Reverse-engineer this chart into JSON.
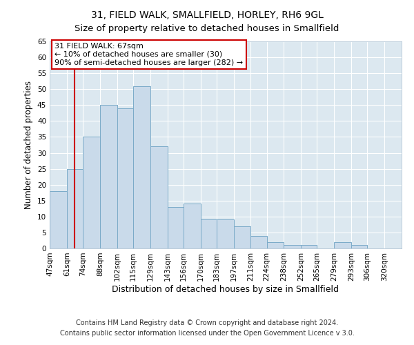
{
  "title": "31, FIELD WALK, SMALLFIELD, HORLEY, RH6 9GL",
  "subtitle": "Size of property relative to detached houses in Smallfield",
  "xlabel": "Distribution of detached houses by size in Smallfield",
  "ylabel": "Number of detached properties",
  "bin_labels": [
    "47sqm",
    "61sqm",
    "74sqm",
    "88sqm",
    "102sqm",
    "115sqm",
    "129sqm",
    "143sqm",
    "156sqm",
    "170sqm",
    "183sqm",
    "197sqm",
    "211sqm",
    "224sqm",
    "238sqm",
    "252sqm",
    "265sqm",
    "279sqm",
    "293sqm",
    "306sqm",
    "320sqm"
  ],
  "bin_edges": [
    47,
    61,
    74,
    88,
    102,
    115,
    129,
    143,
    156,
    170,
    183,
    197,
    211,
    224,
    238,
    252,
    265,
    279,
    293,
    306,
    320
  ],
  "bar_heights": [
    18,
    25,
    35,
    45,
    44,
    51,
    32,
    13,
    14,
    9,
    9,
    7,
    4,
    2,
    1,
    1,
    0,
    2,
    1,
    0
  ],
  "bar_color": "#c9daea",
  "bar_edgecolor": "#7aaac8",
  "vline_x": 67,
  "vline_color": "#cc0000",
  "annotation_title": "31 FIELD WALK: 67sqm",
  "annotation_line1": "← 10% of detached houses are smaller (30)",
  "annotation_line2": "90% of semi-detached houses are larger (282) →",
  "annotation_box_edgecolor": "#cc0000",
  "ylim": [
    0,
    65
  ],
  "yticks": [
    0,
    5,
    10,
    15,
    20,
    25,
    30,
    35,
    40,
    45,
    50,
    55,
    60,
    65
  ],
  "footer1": "Contains HM Land Registry data © Crown copyright and database right 2024.",
  "footer2": "Contains public sector information licensed under the Open Government Licence v 3.0.",
  "bg_color": "#ffffff",
  "plot_bg_color": "#dce8f0",
  "title_fontsize": 10,
  "subtitle_fontsize": 9.5,
  "xlabel_fontsize": 9,
  "ylabel_fontsize": 8.5,
  "tick_fontsize": 7.5,
  "footer_fontsize": 7,
  "annotation_fontsize": 8
}
